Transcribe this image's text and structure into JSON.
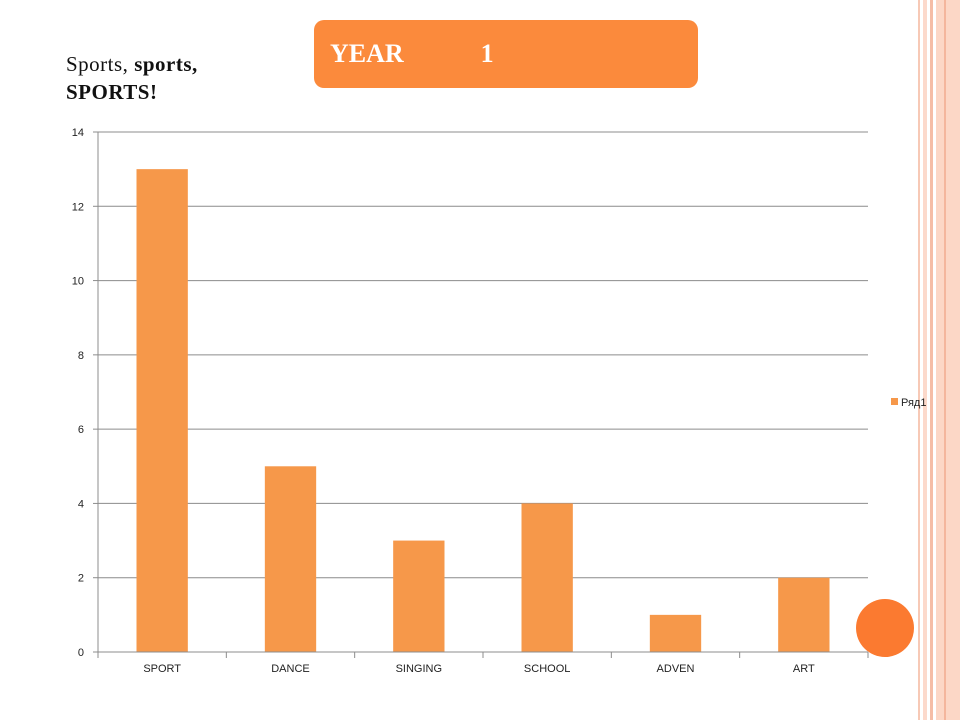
{
  "header": {
    "title_word": "YEAR",
    "title_number": "1",
    "subtitle_part1": "Sports,",
    "subtitle_part2": "sports,",
    "subtitle_part3": "SPORTS!"
  },
  "colors": {
    "bar": "#f6984a",
    "title_bg": "#fb8a3c",
    "accent_circle": "#fb7a30",
    "grid": "#8c8c8c"
  },
  "chart_data": {
    "type": "bar",
    "categories": [
      "SPORT",
      "DANCE",
      "SINGING",
      "SCHOOL",
      "ADVEN",
      "ART"
    ],
    "series": [
      {
        "name": "Ряд1",
        "values": [
          13,
          5,
          3,
          4,
          1,
          2
        ]
      }
    ],
    "xlabel": "",
    "ylabel": "",
    "ylim": [
      0,
      14
    ],
    "yticks": [
      0,
      2,
      4,
      6,
      8,
      10,
      12,
      14
    ],
    "grid": true,
    "legend_position": "right"
  }
}
